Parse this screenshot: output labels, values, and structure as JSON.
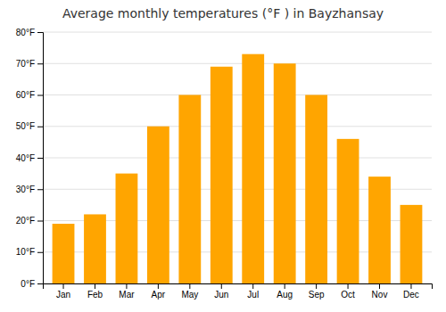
{
  "chart_data": {
    "type": "bar",
    "title": "Average monthly temperatures (°F ) in Bayzhansay",
    "categories": [
      "Jan",
      "Feb",
      "Mar",
      "Apr",
      "May",
      "Jun",
      "Jul",
      "Aug",
      "Sep",
      "Oct",
      "Nov",
      "Dec"
    ],
    "values": [
      19,
      22,
      35,
      50,
      60,
      69,
      73,
      70,
      60,
      46,
      34,
      25
    ],
    "color": "#FFA500",
    "ylim": [
      0,
      80
    ],
    "yticks": [
      {
        "value": 0,
        "label": "0°F"
      },
      {
        "value": 10,
        "label": "10°F"
      },
      {
        "value": 20,
        "label": "20°F"
      },
      {
        "value": 30,
        "label": "30°F"
      },
      {
        "value": 40,
        "label": "40°F"
      },
      {
        "value": 50,
        "label": "50°F"
      },
      {
        "value": 60,
        "label": "60°F"
      },
      {
        "value": 70,
        "label": "70°F"
      },
      {
        "value": 80,
        "label": "80°F"
      }
    ],
    "grid": true
  }
}
